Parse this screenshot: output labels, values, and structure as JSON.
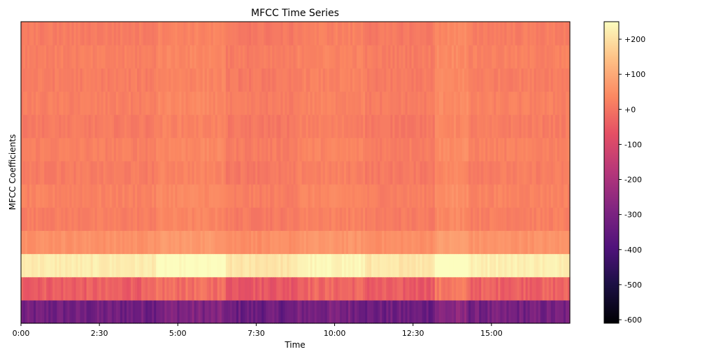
{
  "chart_data": {
    "type": "heatmap",
    "title": "MFCC Time Series",
    "xlabel": "Time",
    "ylabel": "MFCC Coefficients",
    "x_tick_labels": [
      "0:00",
      "2:30",
      "5:00",
      "7:30",
      "10:00",
      "12:30",
      "15:00"
    ],
    "x_tick_values_seconds": [
      0,
      150,
      300,
      450,
      600,
      750,
      900
    ],
    "xlim_seconds": [
      0,
      1050
    ],
    "n_coefficients": 13,
    "colormap": "magma",
    "colorbar": {
      "tick_labels": [
        "+200",
        "+100",
        "+0",
        "-100",
        "-200",
        "-300",
        "-400",
        "-500",
        "-600"
      ],
      "tick_values": [
        200,
        100,
        0,
        -100,
        -200,
        -300,
        -400,
        -500,
        -600
      ],
      "range": [
        -610,
        250
      ]
    },
    "row_base_values": [
      -320,
      -40,
      220,
      55,
      18,
      25,
      14,
      22,
      12,
      20,
      16,
      20,
      14
    ],
    "segments_seconds": [
      {
        "start": 0,
        "end": 260,
        "offset": 0
      },
      {
        "start": 260,
        "end": 390,
        "offset": 18
      },
      {
        "start": 390,
        "end": 530,
        "offset": -8
      },
      {
        "start": 530,
        "end": 660,
        "offset": 10
      },
      {
        "start": 660,
        "end": 790,
        "offset": -6
      },
      {
        "start": 790,
        "end": 855,
        "offset": 28
      },
      {
        "start": 855,
        "end": 1050,
        "offset": 4
      }
    ]
  }
}
